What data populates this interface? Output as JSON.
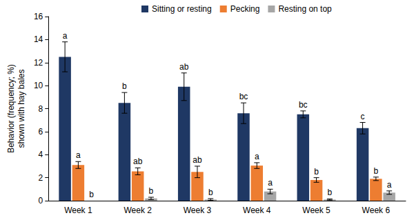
{
  "chart_data": {
    "type": "bar",
    "y_label": "Behavior (frequency; %)\nshown with hay bales",
    "categories": [
      "Week 1",
      "Week 2",
      "Week 3",
      "Week 4",
      "Week 5",
      "Week 6"
    ],
    "series": [
      {
        "name": "Sitting or resting",
        "color": "#1f3864",
        "values": [
          12.5,
          8.5,
          9.9,
          7.6,
          7.5,
          6.3
        ],
        "errors": [
          1.3,
          0.9,
          1.2,
          0.9,
          0.3,
          0.5
        ],
        "letters": [
          "a",
          "b",
          "ab",
          "bc",
          "bc",
          "c"
        ]
      },
      {
        "name": "Pecking",
        "color": "#ed7d31",
        "values": [
          3.1,
          2.55,
          2.5,
          3.05,
          1.8,
          1.9
        ],
        "errors": [
          0.3,
          0.3,
          0.5,
          0.25,
          0.2,
          0.15
        ],
        "letters": [
          "a",
          "ab",
          "ab",
          "a",
          "b",
          "b"
        ]
      },
      {
        "name": "Resting on top",
        "color": "#a6a6a6",
        "values": [
          0,
          0.2,
          0.1,
          0.8,
          0.1,
          0.7
        ],
        "errors": [
          0,
          0.1,
          0.08,
          0.2,
          0.05,
          0.15
        ],
        "letters": [
          "b",
          "b",
          "b",
          "a",
          "b",
          "a"
        ]
      }
    ],
    "ylim": [
      0,
      16
    ],
    "yticks": [
      0,
      2,
      4,
      6,
      8,
      10,
      12,
      14,
      16
    ],
    "grid": false,
    "legend": "top"
  }
}
